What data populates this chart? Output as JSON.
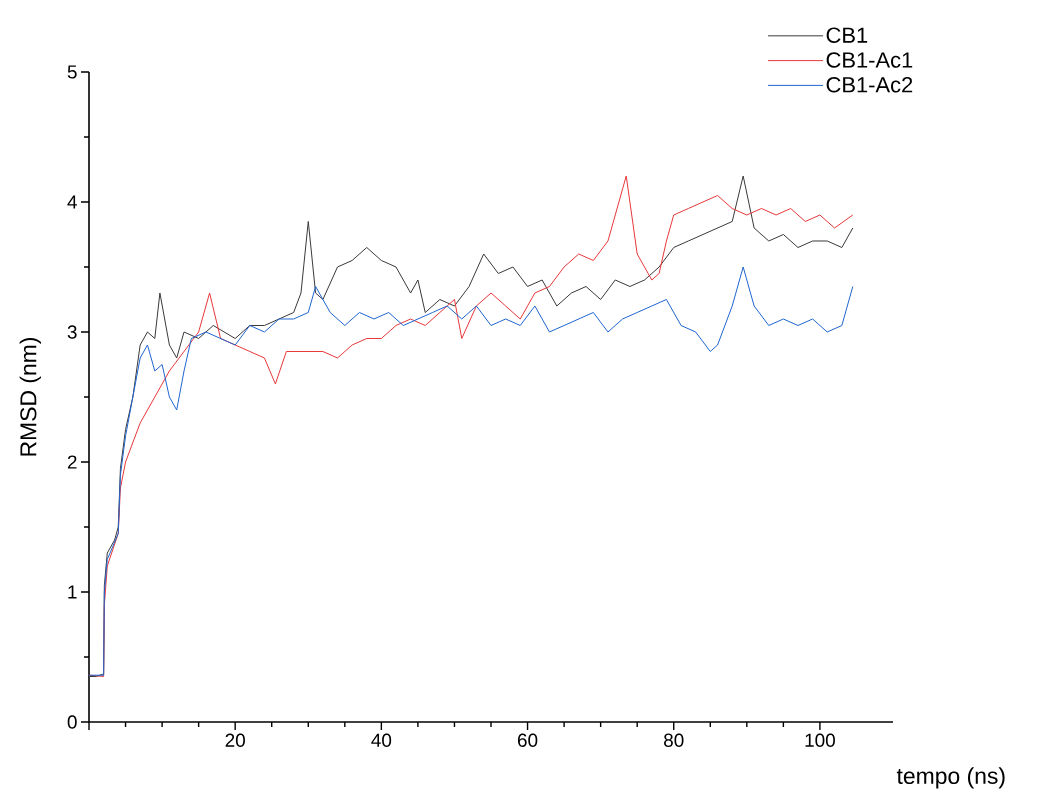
{
  "chart_data": {
    "type": "line",
    "xlabel": "tempo (ns)",
    "ylabel": "RMSD (nm)",
    "xlim": [
      0,
      110
    ],
    "ylim": [
      0,
      5
    ],
    "xticks": [
      {
        "value": 0,
        "label": null
      },
      20,
      40,
      60,
      80,
      100
    ],
    "yticks": [
      0,
      1,
      2,
      3,
      4,
      5
    ],
    "grid": false,
    "legend": "top right",
    "marker": "none",
    "line_style": "solid",
    "series": [
      {
        "name": "CB1",
        "color": "#3a3a3a",
        "x": [
          0,
          1,
          2,
          2.1,
          2.5,
          3.5,
          4,
          4.3,
          5,
          6,
          7,
          8,
          9,
          9.7,
          11,
          12,
          13,
          15,
          17,
          20,
          22,
          24,
          26,
          28,
          29,
          30,
          31,
          32,
          34,
          36,
          38,
          40,
          42,
          44,
          45,
          46,
          48,
          50,
          52,
          54,
          56,
          58,
          60,
          62,
          64,
          66,
          68,
          70,
          72,
          74,
          76,
          78,
          80,
          82,
          84,
          86,
          88,
          89.5,
          91,
          93,
          95,
          97,
          99,
          101,
          103,
          104.5
        ],
        "values": [
          0.35,
          0.35,
          0.37,
          1.05,
          1.3,
          1.4,
          1.5,
          1.95,
          2.25,
          2.5,
          2.9,
          3.0,
          2.95,
          3.3,
          2.9,
          2.8,
          3.0,
          2.95,
          3.05,
          2.95,
          3.05,
          3.05,
          3.1,
          3.15,
          3.3,
          3.85,
          3.3,
          3.25,
          3.5,
          3.55,
          3.65,
          3.55,
          3.5,
          3.3,
          3.4,
          3.15,
          3.25,
          3.2,
          3.35,
          3.6,
          3.45,
          3.5,
          3.35,
          3.4,
          3.2,
          3.3,
          3.35,
          3.25,
          3.4,
          3.35,
          3.4,
          3.5,
          3.65,
          3.7,
          3.75,
          3.8,
          3.85,
          4.2,
          3.8,
          3.7,
          3.75,
          3.65,
          3.7,
          3.7,
          3.65,
          3.8
        ]
      },
      {
        "name": "CB1-Ac1",
        "color": "#e8383b",
        "x": [
          0,
          2,
          2.1,
          2.5,
          4,
          4.3,
          5,
          7,
          9,
          11,
          13,
          15,
          16.5,
          18,
          20,
          22,
          24,
          25.5,
          27,
          30,
          32,
          34,
          36,
          38,
          40,
          42,
          44,
          46,
          48,
          50,
          51,
          53,
          55,
          57,
          59,
          61,
          63,
          65,
          67,
          69,
          71,
          73.5,
          75,
          77,
          78,
          79,
          80,
          82,
          84,
          86,
          88,
          90,
          92,
          94,
          96,
          98,
          100,
          102,
          104.5
        ],
        "values": [
          0.36,
          0.35,
          0.9,
          1.2,
          1.45,
          1.8,
          2.0,
          2.3,
          2.5,
          2.7,
          2.85,
          3.0,
          3.3,
          2.95,
          2.9,
          2.85,
          2.8,
          2.6,
          2.85,
          2.85,
          2.85,
          2.8,
          2.9,
          2.95,
          2.95,
          3.05,
          3.1,
          3.05,
          3.15,
          3.25,
          2.95,
          3.2,
          3.3,
          3.2,
          3.1,
          3.3,
          3.35,
          3.5,
          3.6,
          3.55,
          3.7,
          4.2,
          3.6,
          3.4,
          3.45,
          3.7,
          3.9,
          3.95,
          4.0,
          4.05,
          3.95,
          3.9,
          3.95,
          3.9,
          3.95,
          3.85,
          3.9,
          3.8,
          3.9
        ]
      },
      {
        "name": "CB1-Ac2",
        "color": "#1f66d1",
        "x": [
          0,
          2,
          2.1,
          2.5,
          4,
          4.3,
          5,
          6,
          7,
          8,
          9,
          10,
          11,
          12,
          13,
          14,
          16,
          18,
          20,
          22,
          24,
          26,
          28,
          30,
          31,
          33,
          35,
          37,
          39,
          41,
          43,
          45,
          47,
          49,
          51,
          53,
          55,
          57,
          59,
          61,
          63,
          65,
          67,
          69,
          71,
          73,
          75,
          77,
          79,
          81,
          83,
          85,
          86,
          88,
          89.5,
          91,
          93,
          95,
          97,
          99,
          101,
          103,
          104.5
        ],
        "values": [
          0.36,
          0.36,
          1.0,
          1.25,
          1.45,
          1.9,
          2.2,
          2.5,
          2.8,
          2.9,
          2.7,
          2.75,
          2.5,
          2.4,
          2.7,
          2.95,
          3.0,
          2.95,
          2.9,
          3.05,
          3.0,
          3.1,
          3.1,
          3.15,
          3.35,
          3.15,
          3.05,
          3.15,
          3.1,
          3.15,
          3.05,
          3.1,
          3.15,
          3.2,
          3.1,
          3.2,
          3.05,
          3.1,
          3.05,
          3.2,
          3.0,
          3.05,
          3.1,
          3.15,
          3.0,
          3.1,
          3.15,
          3.2,
          3.25,
          3.05,
          3.0,
          2.85,
          2.9,
          3.2,
          3.5,
          3.2,
          3.05,
          3.1,
          3.05,
          3.1,
          3.0,
          3.05,
          3.35
        ]
      }
    ]
  }
}
